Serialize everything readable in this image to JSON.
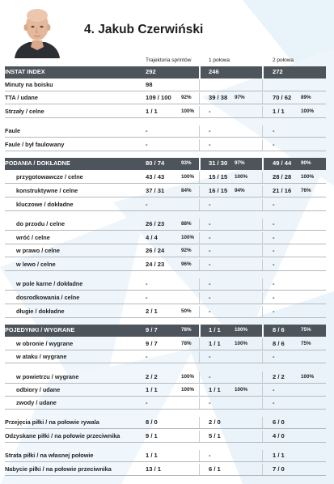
{
  "player": {
    "title": "4. Jakub Czerwiński",
    "photo_icon": "player-portrait"
  },
  "headers": {
    "col1": "Trajektoria sprintów",
    "col2": "1 połowa",
    "col3": "2 połowa"
  },
  "rows": [
    {
      "key": "instat",
      "label": "INSTAT INDEX",
      "style": "dark",
      "v1": "292",
      "p1": "",
      "v2": "246",
      "p2": "",
      "v3": "272",
      "p3": ""
    },
    {
      "key": "minuty",
      "label": "Minuty na boisku",
      "style": "",
      "v1": "98",
      "p1": "",
      "v2": "",
      "p2": "",
      "v3": "",
      "p3": ""
    },
    {
      "key": "tta",
      "label": "TTA / udane",
      "style": "",
      "v1": "109 / 100",
      "p1": "92%",
      "v2": "39 / 38",
      "p2": "97%",
      "v3": "70 / 62",
      "p3": "89%"
    },
    {
      "key": "strzaly",
      "label": "Strzały / celne",
      "style": "",
      "v1": "1 / 1",
      "p1": "100%",
      "v2": "-",
      "p2": "",
      "v3": "1 / 1",
      "p3": "100%"
    },
    {
      "key": "faule",
      "label": "Faule",
      "style": "",
      "v1": "-",
      "p1": "",
      "v2": "-",
      "p2": "",
      "v3": "-",
      "p3": ""
    },
    {
      "key": "faulowany",
      "label": "Faule / był faulowany",
      "style": "",
      "v1": "-",
      "p1": "",
      "v2": "-",
      "p2": "",
      "v3": "-",
      "p3": ""
    },
    {
      "key": "podania",
      "label": "PODANIA / DOKŁADNE",
      "style": "dark",
      "v1": "80 / 74",
      "p1": "93%",
      "v2": "31 / 30",
      "p2": "97%",
      "v3": "49 / 44",
      "p3": "90%"
    },
    {
      "key": "przygot",
      "label": "przygotowawcze / celne",
      "style": "indent",
      "v1": "43 / 43",
      "p1": "100%",
      "v2": "15 / 15",
      "p2": "100%",
      "v3": "28 / 28",
      "p3": "100%"
    },
    {
      "key": "konstr",
      "label": "konstruktywne / celne",
      "style": "indent",
      "v1": "37 / 31",
      "p1": "84%",
      "v2": "16 / 15",
      "p2": "94%",
      "v3": "21 / 16",
      "p3": "76%"
    },
    {
      "key": "kluczowe",
      "label": "kluczowe / dokładne",
      "style": "indent",
      "v1": "-",
      "p1": "",
      "v2": "-",
      "p2": "",
      "v3": "-",
      "p3": ""
    },
    {
      "key": "doprzodu",
      "label": "do przodu / celne",
      "style": "indent",
      "v1": "26 / 23",
      "p1": "88%",
      "v2": "-",
      "p2": "",
      "v3": "-",
      "p3": ""
    },
    {
      "key": "wroc",
      "label": "wróć / celne",
      "style": "indent",
      "v1": "4 / 4",
      "p1": "100%",
      "v2": "-",
      "p2": "",
      "v3": "-",
      "p3": ""
    },
    {
      "key": "wprawo",
      "label": "w prawo / celne",
      "style": "indent",
      "v1": "26 / 24",
      "p1": "92%",
      "v2": "-",
      "p2": "",
      "v3": "-",
      "p3": ""
    },
    {
      "key": "wlewo",
      "label": "w lewo / celne",
      "style": "indent",
      "v1": "24 / 23",
      "p1": "96%",
      "v2": "-",
      "p2": "",
      "v3": "-",
      "p3": ""
    },
    {
      "key": "wpole",
      "label": "w pole karne / dokładne",
      "style": "indent",
      "v1": "-",
      "p1": "",
      "v2": "-",
      "p2": "",
      "v3": "-",
      "p3": ""
    },
    {
      "key": "dosrod",
      "label": "dosrodkowania / celne",
      "style": "indent",
      "v1": "-",
      "p1": "",
      "v2": "-",
      "p2": "",
      "v3": "-",
      "p3": ""
    },
    {
      "key": "dlugie",
      "label": "długie / dokładne",
      "style": "indent",
      "v1": "2 / 1",
      "p1": "50%",
      "v2": "-",
      "p2": "",
      "v3": "-",
      "p3": ""
    },
    {
      "key": "pojedynki",
      "label": "POJEDYNKI / WYGRANE",
      "style": "dark",
      "v1": "9 / 7",
      "p1": "78%",
      "v2": "1 / 1",
      "p2": "100%",
      "v3": "8 / 6",
      "p3": "75%"
    },
    {
      "key": "wobronie",
      "label": "w obronie / wygrane",
      "style": "indent",
      "v1": "9 / 7",
      "p1": "78%",
      "v2": "1 / 1",
      "p2": "100%",
      "v3": "8 / 6",
      "p3": "75%"
    },
    {
      "key": "wataku",
      "label": "w ataku / wygrane",
      "style": "indent",
      "v1": "-",
      "p1": "",
      "v2": "-",
      "p2": "",
      "v3": "-",
      "p3": ""
    },
    {
      "key": "wpowietrzu",
      "label": "w powietrzu / wygrane",
      "style": "indent",
      "v1": "2 / 2",
      "p1": "100%",
      "v2": "-",
      "p2": "",
      "v3": "2 / 2",
      "p3": "100%"
    },
    {
      "key": "odbiory",
      "label": "odbiory / udane",
      "style": "indent",
      "v1": "1 / 1",
      "p1": "100%",
      "v2": "1 / 1",
      "p2": "100%",
      "v3": "-",
      "p3": ""
    },
    {
      "key": "zwody",
      "label": "zwody / udane",
      "style": "indent",
      "v1": "-",
      "p1": "",
      "v2": "-",
      "p2": "",
      "v3": "-",
      "p3": ""
    },
    {
      "key": "przejecia",
      "label": "Przejęcia piłki / na połowie rywala",
      "style": "",
      "v1": "8 / 0",
      "p1": "",
      "v2": "2 / 0",
      "p2": "",
      "v3": "6 / 0",
      "p3": ""
    },
    {
      "key": "odzyskane",
      "label": "Odzyskane piłki / na połowie przeciwnika",
      "style": "",
      "v1": "9 / 1",
      "p1": "",
      "v2": "5 / 1",
      "p2": "",
      "v3": "4 / 0",
      "p3": ""
    },
    {
      "key": "strata",
      "label": "Strata piłki / na własnej połowie",
      "style": "",
      "v1": "1 / 1",
      "p1": "",
      "v2": "-",
      "p2": "",
      "v3": "1 / 1",
      "p3": ""
    },
    {
      "key": "nabycie",
      "label": "Nabycie piłki / na połowie przeciwnika",
      "style": "",
      "v1": "13 / 1",
      "p1": "",
      "v2": "6 / 1",
      "p2": "",
      "v3": "7 / 0",
      "p3": ""
    }
  ],
  "colors": {
    "band": "#4d545b",
    "rule": "#b5b9be",
    "background_stripes": "#e6f1f8"
  }
}
